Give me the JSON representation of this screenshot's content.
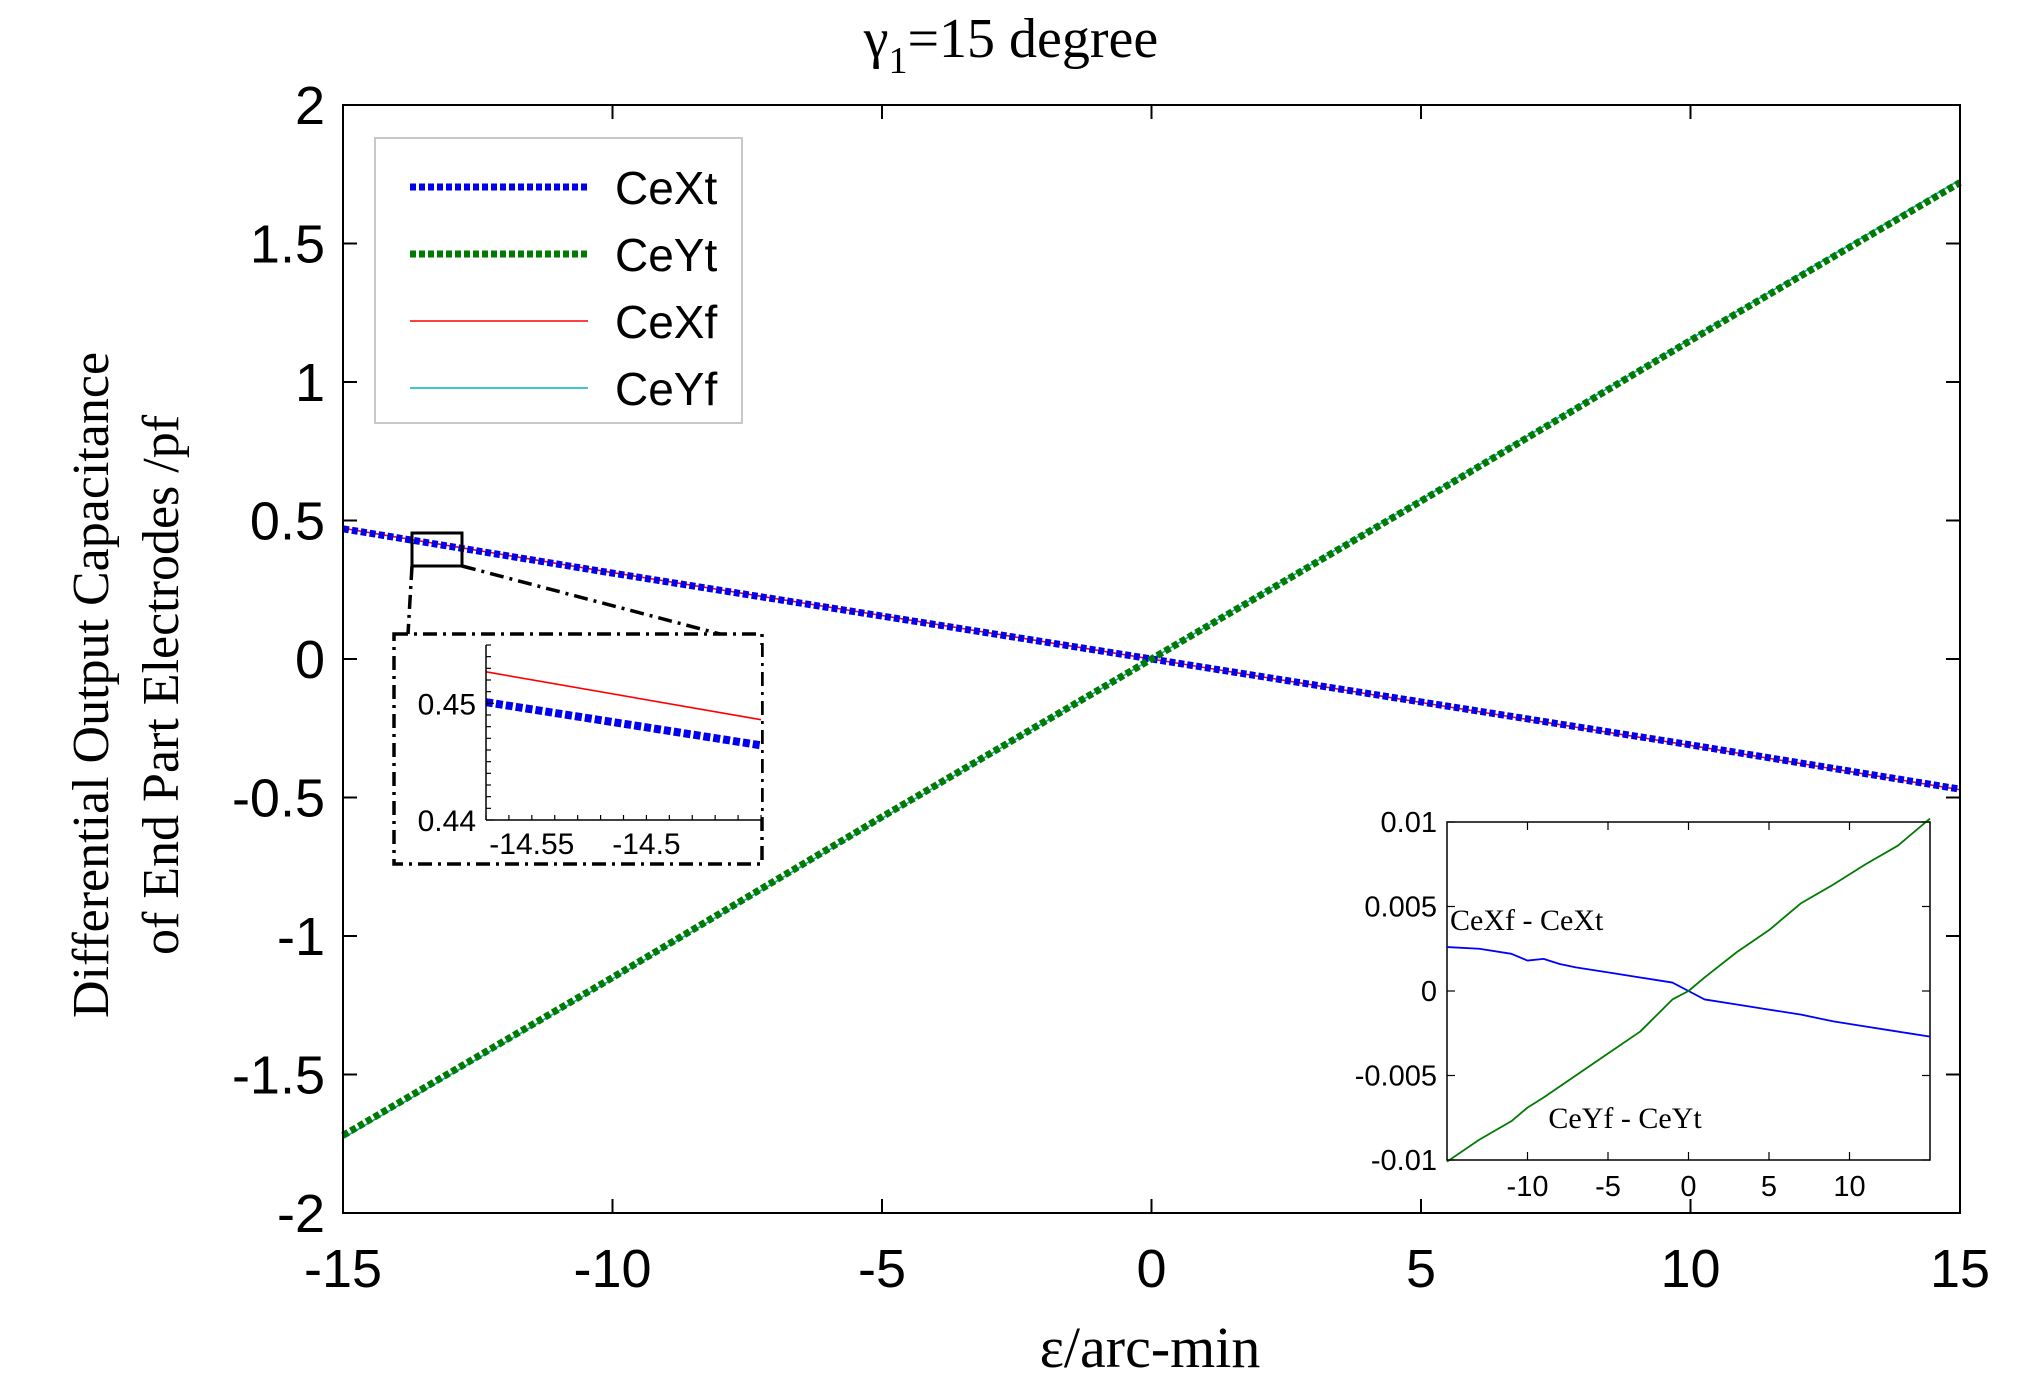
{
  "chart_data": [
    {
      "id": "main",
      "type": "line",
      "title_base": "γ",
      "title_subscript": "1",
      "title_rest": "=15  degree",
      "xlabel": "ε/arc-min",
      "ylabel_line1": "Differential Output Capacitance",
      "ylabel_line2": "of End Part Electrodes /pf",
      "xlim": [
        -15,
        15
      ],
      "ylim": [
        -2,
        2
      ],
      "xticks": [
        -15,
        -10,
        -5,
        0,
        5,
        10,
        15
      ],
      "yticks": [
        -2,
        -1.5,
        -1,
        -0.5,
        0,
        0.5,
        1,
        1.5,
        2
      ],
      "legend": "top-left",
      "grid": false,
      "series": [
        {
          "name": "CeXt",
          "color": "#0000ee",
          "style": "dotted",
          "x": [
            -15,
            -10,
            -5,
            0,
            5,
            10,
            15
          ],
          "y": [
            0.47,
            0.31,
            0.155,
            0.0,
            -0.155,
            -0.31,
            -0.47
          ]
        },
        {
          "name": "CeYt",
          "color": "#007a00",
          "style": "dotted",
          "x": [
            -15,
            -10,
            -5,
            0,
            5,
            10,
            15
          ],
          "y": [
            -1.72,
            -1.15,
            -0.57,
            0.0,
            0.57,
            1.15,
            1.72
          ]
        },
        {
          "name": "CeXf",
          "color": "#ff0000",
          "style": "solid",
          "x": [
            -15,
            -10,
            -5,
            0,
            5,
            10,
            15
          ],
          "y": [
            0.472,
            0.312,
            0.157,
            0.0,
            -0.157,
            -0.312,
            -0.472
          ]
        },
        {
          "name": "CeYf",
          "color": "#00b5b5",
          "style": "solid",
          "x": [
            -15,
            -10,
            -5,
            0,
            5,
            10,
            15
          ],
          "y": [
            -1.73,
            -1.155,
            -0.575,
            0.0,
            0.575,
            1.155,
            1.73
          ]
        }
      ]
    },
    {
      "id": "zoom_inset",
      "type": "line",
      "xlim": [
        -14.57,
        -14.45
      ],
      "ylim": [
        0.44,
        0.455
      ],
      "xticks": [
        -14.55,
        -14.5
      ],
      "yticks": [
        0.44,
        0.45
      ],
      "series": [
        {
          "name": "CeXf",
          "color": "#ff0000",
          "style": "solid",
          "x": [
            -14.57,
            -14.45
          ],
          "y": [
            0.4527,
            0.4486
          ]
        },
        {
          "name": "CeXt",
          "color": "#0000ee",
          "style": "dotted",
          "x": [
            -14.57,
            -14.45
          ],
          "y": [
            0.4501,
            0.4464
          ]
        }
      ]
    },
    {
      "id": "difference_inset",
      "type": "line",
      "xlim": [
        -15,
        15
      ],
      "ylim": [
        -0.01,
        0.01
      ],
      "xticks": [
        -10,
        -5,
        0,
        5,
        10
      ],
      "yticks": [
        -0.01,
        -0.005,
        0,
        0.005,
        0.01
      ],
      "annotations": [
        "CeXf - CeXt",
        "CeYf - CeYt"
      ],
      "series": [
        {
          "name": "CeXf - CeXt",
          "color": "#0000ff",
          "style": "solid",
          "x": [
            -15,
            -13,
            -11,
            -10,
            -9,
            -8,
            -7,
            -5,
            -3,
            -1,
            0,
            1,
            3,
            5,
            7,
            9,
            11,
            13,
            15
          ],
          "y": [
            0.0026,
            0.0025,
            0.0022,
            0.0018,
            0.0019,
            0.0016,
            0.0014,
            0.0011,
            0.0008,
            0.0005,
            0.0,
            -0.0005,
            -0.0008,
            -0.0011,
            -0.0014,
            -0.0018,
            -0.0021,
            -0.0024,
            -0.0027
          ]
        },
        {
          "name": "CeYf - CeYt",
          "color": "#007a00",
          "style": "solid",
          "x": [
            -15,
            -13,
            -11,
            -10,
            -9,
            -7,
            -5,
            -3,
            -1,
            0,
            1,
            3,
            5,
            7,
            9,
            11,
            13,
            15
          ],
          "y": [
            -0.0101,
            -0.0088,
            -0.0077,
            -0.0069,
            -0.0063,
            -0.005,
            -0.0037,
            -0.0024,
            -0.0005,
            0.0,
            0.0008,
            0.0023,
            0.0036,
            0.0052,
            0.0063,
            0.0075,
            0.0086,
            0.0102
          ]
        }
      ]
    }
  ]
}
